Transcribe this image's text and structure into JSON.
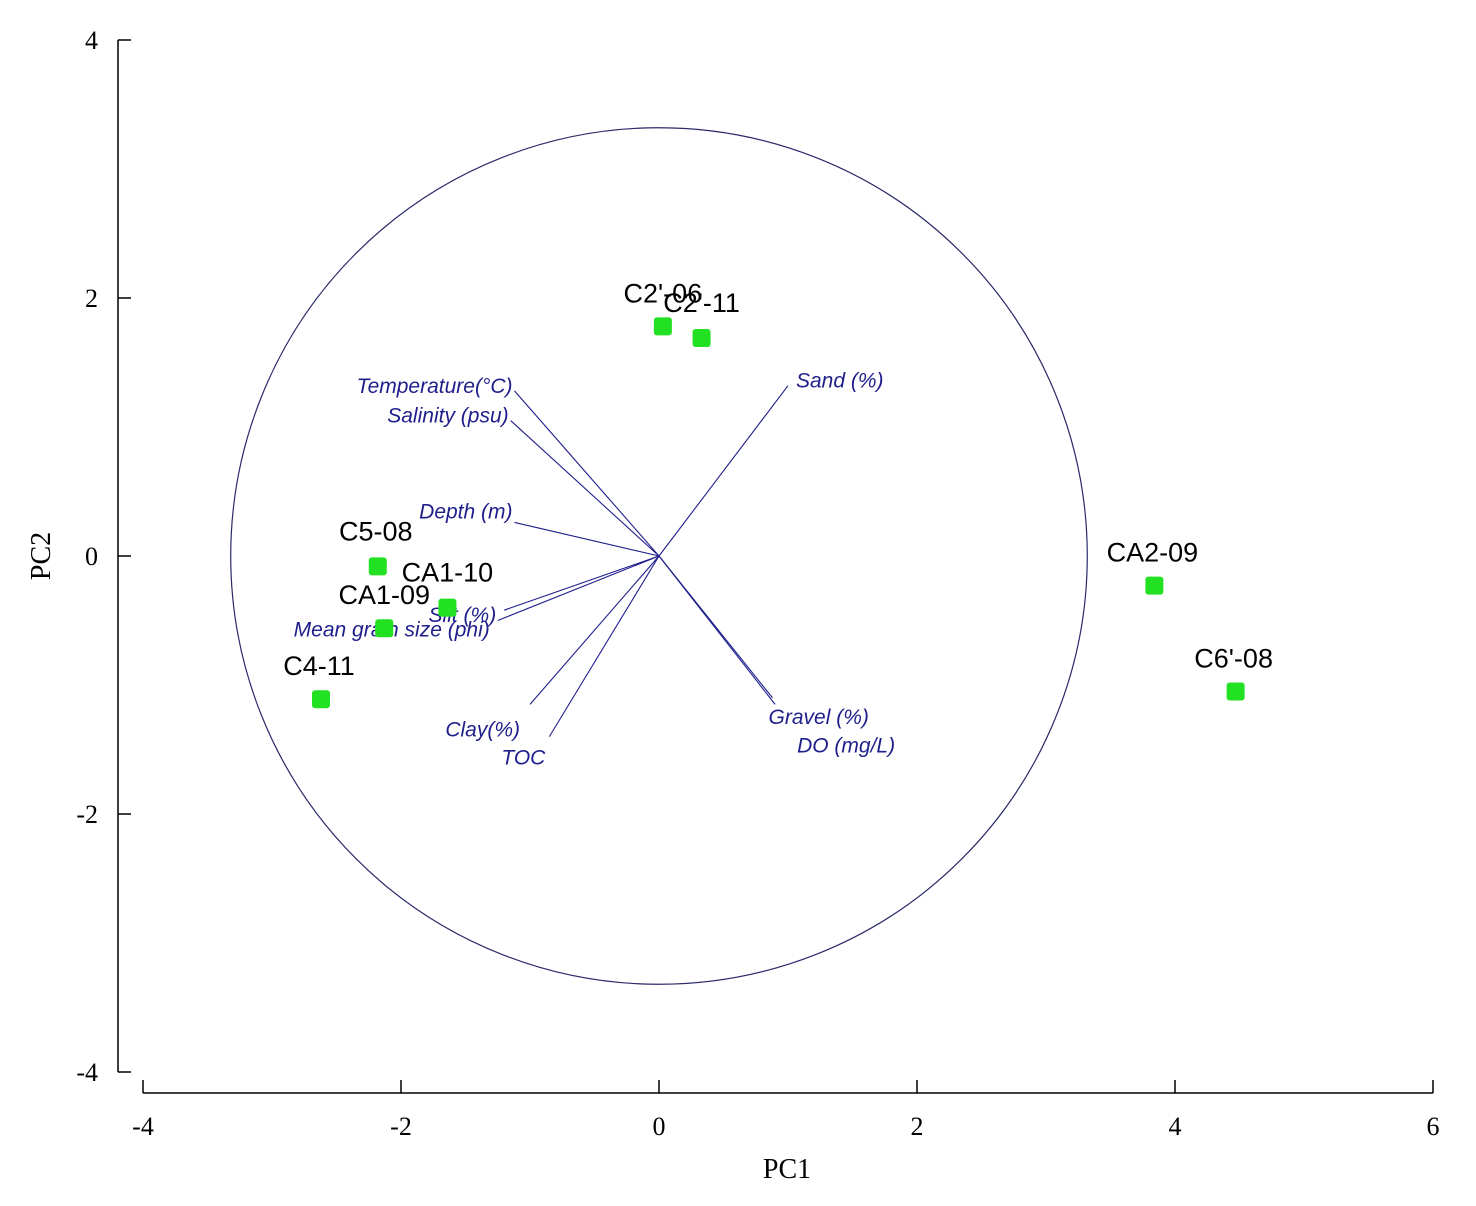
{
  "chart_data": {
    "type": "scatter",
    "title": "",
    "xlabel": "PC1",
    "ylabel": "PC2",
    "xlim": [
      -4,
      6
    ],
    "ylim": [
      -4,
      4
    ],
    "x_ticks": [
      -4,
      -2,
      0,
      2,
      4,
      6
    ],
    "y_ticks": [
      -4,
      -2,
      0,
      2,
      4
    ],
    "x_tick_labels": [
      "-4",
      "-2",
      "0",
      "2",
      "4",
      "6"
    ],
    "y_tick_labels": [
      "-4",
      "-2",
      "0",
      "2",
      "4"
    ],
    "grid": false,
    "correlation_circle": {
      "radius_pc": 3.32
    },
    "marker_color": "#22e022",
    "vector_color": "#1f1f8c",
    "samples": [
      {
        "label": "C2'-06",
        "x": 0.03,
        "y": 1.78
      },
      {
        "label": "C2'-11",
        "x": 0.33,
        "y": 1.69
      },
      {
        "label": "C5-08",
        "x": -2.18,
        "y": -0.08
      },
      {
        "label": "CA1-10",
        "x": -1.64,
        "y": -0.4
      },
      {
        "label": "CA1-09",
        "x": -2.13,
        "y": -0.56
      },
      {
        "label": "C4-11",
        "x": -2.62,
        "y": -1.11
      },
      {
        "label": "CA2-09",
        "x": 3.84,
        "y": -0.23
      },
      {
        "label": "C6'-08",
        "x": 4.47,
        "y": -1.05
      }
    ],
    "vectors": [
      {
        "label": "Temperature(°C)",
        "x": -1.12,
        "y": 1.28
      },
      {
        "label": "Salinity (psu)",
        "x": -1.15,
        "y": 1.05
      },
      {
        "label": "Sand (%)",
        "x": 1.0,
        "y": 1.32
      },
      {
        "label": "Depth (m)",
        "x": -1.12,
        "y": 0.26
      },
      {
        "label": "Silt (%)",
        "x": -1.2,
        "y": -0.42
      },
      {
        "label": "Mean grain size (phi)",
        "x": -1.25,
        "y": -0.5
      },
      {
        "label": "Clay(%)",
        "x": -1.0,
        "y": -1.15
      },
      {
        "label": "TOC",
        "x": -0.85,
        "y": -1.4
      },
      {
        "label": "Gravel (%)",
        "x": 0.88,
        "y": -1.1
      },
      {
        "label": "DO (mg/L)",
        "x": 0.9,
        "y": -1.15
      }
    ]
  }
}
